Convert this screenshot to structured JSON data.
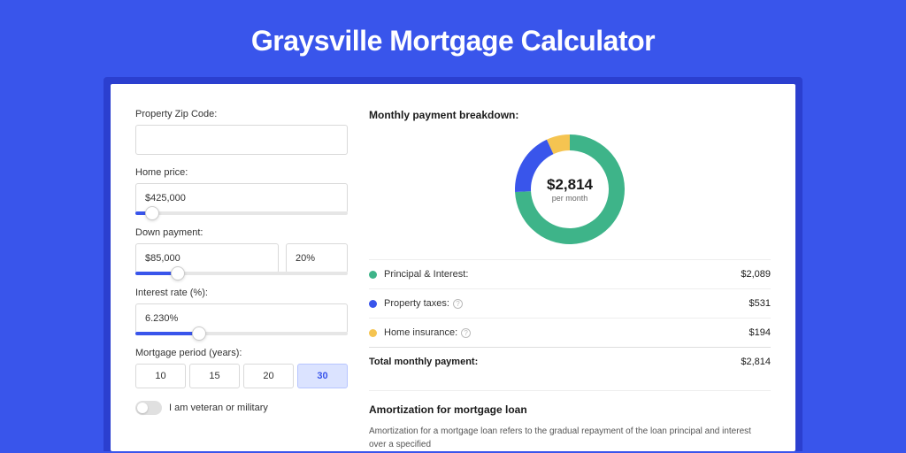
{
  "page": {
    "title": "Graysville Mortgage Calculator",
    "background_color": "#3955eb",
    "shadow_color": "#2b3fcf",
    "card_bg": "#ffffff"
  },
  "form": {
    "zip": {
      "label": "Property Zip Code:",
      "value": ""
    },
    "home_price": {
      "label": "Home price:",
      "value": "$425,000",
      "slider_pct": 8
    },
    "down_payment": {
      "label": "Down payment:",
      "amount": "$85,000",
      "percent": "20%",
      "slider_pct": 20
    },
    "interest_rate": {
      "label": "Interest rate (%):",
      "value": "6.230%",
      "slider_pct": 30
    },
    "mortgage_period": {
      "label": "Mortgage period (years):",
      "options": [
        "10",
        "15",
        "20",
        "30"
      ],
      "selected_index": 3
    },
    "veteran": {
      "label": "I am veteran or military",
      "on": false
    }
  },
  "breakdown": {
    "title": "Monthly payment breakdown:",
    "donut": {
      "center_amount": "$2,814",
      "center_sub": "per month",
      "series": [
        {
          "label": "Principal & Interest:",
          "value_num": 2089,
          "value": "$2,089",
          "color": "#3eb489",
          "info": false
        },
        {
          "label": "Property taxes:",
          "value_num": 531,
          "value": "$531",
          "color": "#3955eb",
          "info": true
        },
        {
          "label": "Home insurance:",
          "value_num": 194,
          "value": "$194",
          "color": "#f5c451",
          "info": true
        }
      ],
      "total_label": "Total monthly payment:",
      "total_value": "$2,814",
      "ring_thickness": 18,
      "bg_color": "#ffffff"
    }
  },
  "amortization": {
    "title": "Amortization for mortgage loan",
    "text": "Amortization for a mortgage loan refers to the gradual repayment of the loan principal and interest over a specified"
  }
}
